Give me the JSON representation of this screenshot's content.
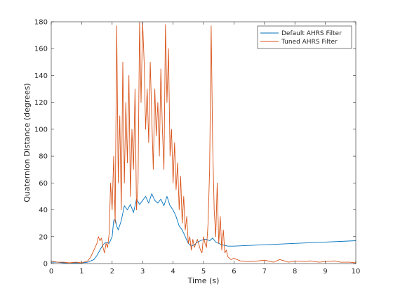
{
  "chart_data": {
    "type": "line",
    "title": "",
    "xlabel": "Time (s)",
    "ylabel": "Quaternion Distance (degrees)",
    "xlim": [
      0,
      10
    ],
    "ylim": [
      0,
      180
    ],
    "xticks": [
      0,
      1,
      2,
      3,
      4,
      5,
      6,
      7,
      8,
      9,
      10
    ],
    "yticks": [
      0,
      20,
      40,
      60,
      80,
      100,
      120,
      140,
      160,
      180
    ],
    "grid": false,
    "legend_position": "top-right",
    "series": [
      {
        "name": "Default AHRS Filter",
        "color": "#0072bd",
        "x": [
          0,
          0.2,
          0.4,
          0.6,
          0.8,
          1.0,
          1.2,
          1.4,
          1.5,
          1.6,
          1.7,
          1.8,
          1.9,
          2.0,
          2.05,
          2.1,
          2.15,
          2.2,
          2.3,
          2.4,
          2.5,
          2.6,
          2.7,
          2.8,
          2.9,
          3.0,
          3.1,
          3.2,
          3.3,
          3.4,
          3.5,
          3.6,
          3.7,
          3.8,
          3.9,
          4.0,
          4.1,
          4.2,
          4.3,
          4.4,
          4.5,
          4.6,
          4.7,
          4.8,
          4.9,
          5.0,
          5.1,
          5.2,
          5.3,
          5.4,
          5.5,
          5.6,
          5.8,
          6.0,
          7.0,
          8.0,
          9.0,
          10.0
        ],
        "values": [
          1,
          1,
          0.5,
          0.5,
          0.5,
          0.5,
          1,
          3,
          6,
          10,
          14,
          16,
          15,
          20,
          32,
          33,
          28,
          25,
          32,
          43,
          40,
          44,
          38,
          48,
          44,
          47,
          50,
          45,
          52,
          47,
          45,
          48,
          43,
          50,
          43,
          40,
          35,
          28,
          25,
          20,
          15,
          13,
          14,
          16,
          17,
          18,
          18,
          17,
          19,
          16,
          15,
          14,
          13,
          13,
          14,
          15,
          16,
          17
        ]
      },
      {
        "name": "Tuned AHRS Filter",
        "color": "#d95319",
        "x": [
          0,
          0.2,
          0.4,
          0.6,
          0.8,
          1.0,
          1.2,
          1.3,
          1.4,
          1.5,
          1.55,
          1.6,
          1.65,
          1.7,
          1.75,
          1.8,
          1.85,
          1.9,
          1.95,
          2.0,
          2.05,
          2.1,
          2.15,
          2.2,
          2.25,
          2.3,
          2.35,
          2.4,
          2.45,
          2.5,
          2.55,
          2.6,
          2.65,
          2.7,
          2.75,
          2.8,
          2.85,
          2.9,
          2.95,
          3.0,
          3.05,
          3.1,
          3.15,
          3.2,
          3.25,
          3.3,
          3.35,
          3.4,
          3.45,
          3.5,
          3.55,
          3.6,
          3.65,
          3.7,
          3.75,
          3.8,
          3.85,
          3.9,
          3.95,
          4.0,
          4.05,
          4.1,
          4.15,
          4.2,
          4.25,
          4.3,
          4.35,
          4.4,
          4.45,
          4.5,
          4.55,
          4.6,
          4.65,
          4.7,
          4.75,
          4.8,
          4.85,
          4.9,
          4.95,
          5.0,
          5.05,
          5.1,
          5.15,
          5.2,
          5.25,
          5.3,
          5.35,
          5.4,
          5.45,
          5.5,
          5.55,
          5.6,
          5.65,
          5.7,
          5.75,
          5.8,
          5.9,
          6.0,
          6.2,
          6.5,
          6.8,
          7.0,
          7.3,
          7.5,
          7.8,
          8.0,
          8.3,
          8.5,
          8.8,
          9.0,
          9.3,
          9.5,
          9.8,
          10.0
        ],
        "values": [
          2,
          1,
          1,
          0.5,
          1,
          0.5,
          2,
          5,
          10,
          15,
          20,
          17,
          19,
          12,
          8,
          15,
          12,
          22,
          60,
          40,
          80,
          30,
          177,
          60,
          110,
          40,
          150,
          60,
          120,
          75,
          140,
          50,
          100,
          70,
          130,
          40,
          60,
          180,
          120,
          180,
          150,
          100,
          130,
          90,
          150,
          110,
          70,
          130,
          95,
          120,
          80,
          145,
          100,
          70,
          178,
          120,
          160,
          80,
          100,
          60,
          90,
          55,
          75,
          40,
          65,
          30,
          50,
          25,
          35,
          15,
          20,
          10,
          18,
          12,
          15,
          18,
          14,
          10,
          8,
          20,
          15,
          12,
          30,
          70,
          177,
          90,
          40,
          20,
          60,
          15,
          35,
          10,
          25,
          8,
          10,
          5,
          3,
          4,
          2,
          1.5,
          2,
          2.5,
          1,
          3,
          1,
          2,
          1.5,
          2,
          1,
          1.5,
          2,
          1,
          1,
          0.5
        ]
      }
    ]
  }
}
